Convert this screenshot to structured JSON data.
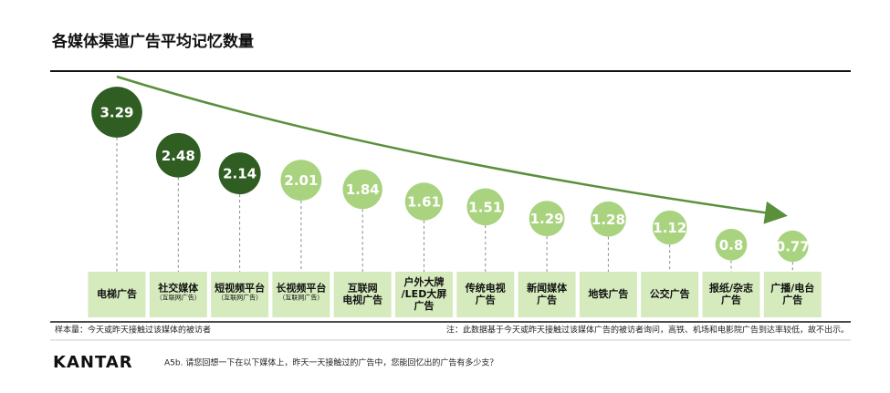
{
  "chart_data": {
    "type": "bubble",
    "title": "各媒体渠道广告平均记忆数量",
    "categories": [
      [
        "电梯广告"
      ],
      [
        "社交媒体"
      ],
      [
        "短视频平台"
      ],
      [
        "长视频平台"
      ],
      [
        "互联网",
        "电视广告"
      ],
      [
        "户外大牌",
        "/LED大屏",
        "广告"
      ],
      [
        "传统电视",
        "广告"
      ],
      [
        "新闻媒体",
        "广告"
      ],
      [
        "地铁广告"
      ],
      [
        "公交广告"
      ],
      [
        "报纸/杂志",
        "广告"
      ],
      [
        "广播/电台",
        "广告"
      ]
    ],
    "category_notes": [
      null,
      "（互联网广告）",
      "（互联网广告）",
      "（互联网广告）",
      null,
      null,
      null,
      null,
      null,
      null,
      null,
      null
    ],
    "values": [
      3.29,
      2.48,
      2.14,
      2.01,
      1.84,
      1.61,
      1.51,
      1.29,
      1.28,
      1.12,
      0.8,
      0.77
    ],
    "colors": [
      "#2f5d22",
      "#2f5d22",
      "#2f5d22",
      "#a9d37f",
      "#a9d37f",
      "#a9d37f",
      "#a9d37f",
      "#a9d37f",
      "#a9d37f",
      "#a9d37f",
      "#a9d37f",
      "#a9d37f"
    ],
    "sample_note": "样本量：今天或昨天接触过该媒体的被访者",
    "footnote": "注：此数据基于今天或昨天接触过该媒体广告的被访者询问，高铁、机场和电影院广告到达率较低，故不出示。",
    "brand": "KANTAR",
    "question": "A5b. 请您回想一下在以下媒体上，昨天一天接触过的广告中，您能回忆出的广告有多少支？"
  }
}
